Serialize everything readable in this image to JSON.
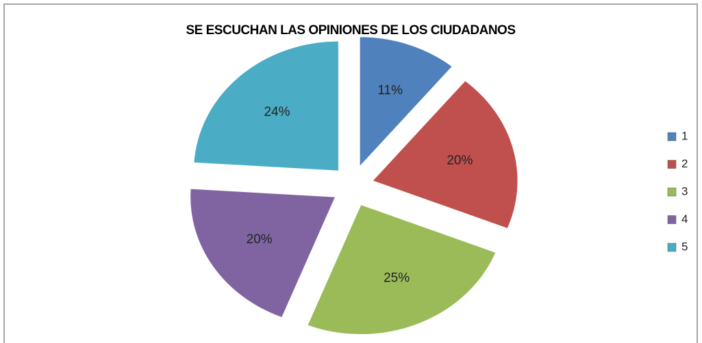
{
  "chart_data": {
    "type": "pie",
    "title": "SE ESCUCHAN LAS OPINIONES DE LOS CIUDADANOS",
    "categories": [
      "1",
      "2",
      "3",
      "4",
      "5"
    ],
    "values": [
      11,
      20,
      25,
      20,
      24
    ],
    "value_labels": [
      "11%",
      "20%",
      "25%",
      "20%",
      "24%"
    ],
    "colors": [
      "#4f81bd",
      "#c0504d",
      "#9bbb59",
      "#8064a2",
      "#4bacc6"
    ],
    "legend": "right"
  }
}
